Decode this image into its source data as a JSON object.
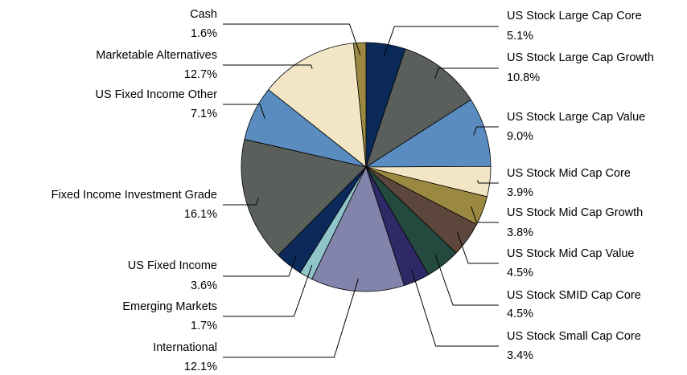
{
  "chart_data": {
    "type": "pie",
    "categories": [
      "US Stock Large Cap Core",
      "US Stock Large Cap Growth",
      "US Stock Large Cap Value",
      "US Stock Mid Cap Core",
      "US Stock Mid Cap Growth",
      "US Stock Mid Cap Value",
      "US Stock SMID Cap Core",
      "US Stock Small Cap Core",
      "International",
      "Emerging Markets",
      "US Fixed Income",
      "Fixed Income Investment Grade",
      "US Fixed Income Other",
      "Marketable Alternatives",
      "Cash"
    ],
    "values": [
      5.1,
      10.8,
      9.0,
      3.9,
      3.8,
      4.5,
      4.5,
      3.4,
      12.1,
      1.7,
      3.6,
      16.1,
      7.1,
      12.7,
      1.6
    ],
    "value_labels": [
      "5.1%",
      "10.8%",
      "9.0%",
      "3.9%",
      "3.8%",
      "4.5%",
      "4.5%",
      "3.4%",
      "12.1%",
      "1.7%",
      "3.6%",
      "16.1%",
      "7.1%",
      "12.7%",
      "1.6%"
    ],
    "colors": [
      "#0b2a5b",
      "#5b5f5b",
      "#5a8cc0",
      "#f2e6c4",
      "#9b8841",
      "#5d463b",
      "#244a40",
      "#2f2a67",
      "#8384ac",
      "#8ec4ca",
      "#0b2a5b",
      "#5b5f5b",
      "#5a8cc0",
      "#f2e6c4",
      "#9b8841"
    ]
  }
}
